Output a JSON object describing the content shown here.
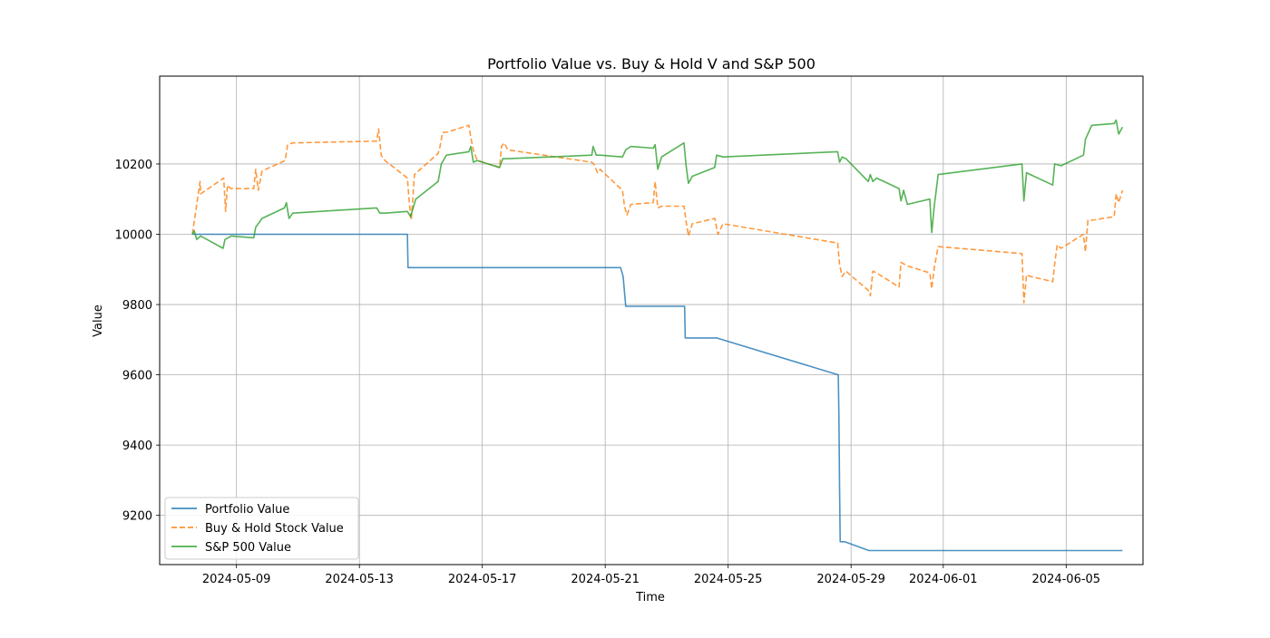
{
  "chart_data": {
    "type": "line",
    "title": "Portfolio Value vs. Buy & Hold V and S&P 500",
    "xlabel": "Time",
    "ylabel": "Value",
    "xlim": [
      "2024-05-06T12:00",
      "2024-06-07T12:00"
    ],
    "ylim": [
      9060,
      10450
    ],
    "x_ticks": [
      "2024-05-09",
      "2024-05-13",
      "2024-05-17",
      "2024-05-21",
      "2024-05-25",
      "2024-05-29",
      "2024-06-01",
      "2024-06-05"
    ],
    "y_ticks": [
      9200,
      9400,
      9600,
      9800,
      10000,
      10200
    ],
    "grid": true,
    "legend_position": "lower-left",
    "series": [
      {
        "name": "Portfolio Value",
        "color": "#1f77b4",
        "style": "solid",
        "points": [
          [
            "2024-05-07T13:30",
            10000
          ],
          [
            "2024-05-14T13:30",
            10000
          ],
          [
            "2024-05-14T14:00",
            9905
          ],
          [
            "2024-05-21T12:00",
            9905
          ],
          [
            "2024-05-21T14:00",
            9880
          ],
          [
            "2024-05-21T16:00",
            9795
          ],
          [
            "2024-05-23T14:00",
            9795
          ],
          [
            "2024-05-23T14:30",
            9705
          ],
          [
            "2024-05-24T15:00",
            9705
          ],
          [
            "2024-05-28T14:00",
            9600
          ],
          [
            "2024-05-28T14:30",
            9480
          ],
          [
            "2024-05-28T15:00",
            9280
          ],
          [
            "2024-05-28T15:30",
            9125
          ],
          [
            "2024-05-28T19:00",
            9125
          ],
          [
            "2024-05-29T14:00",
            9100
          ],
          [
            "2024-06-06T20:00",
            9100
          ]
        ]
      },
      {
        "name": "Buy & Hold Stock Value",
        "color": "#ff7f0e",
        "style": "dashed",
        "points": [
          [
            "2024-05-07T13:30",
            10000
          ],
          [
            "2024-05-07T16:00",
            10060
          ],
          [
            "2024-05-07T18:00",
            10110
          ],
          [
            "2024-05-07T19:30",
            10150
          ],
          [
            "2024-05-07T20:00",
            10115
          ],
          [
            "2024-05-08T14:00",
            10160
          ],
          [
            "2024-05-08T15:30",
            10065
          ],
          [
            "2024-05-08T17:00",
            10140
          ],
          [
            "2024-05-08T19:30",
            10130
          ],
          [
            "2024-05-09T13:30",
            10130
          ],
          [
            "2024-05-09T15:00",
            10185
          ],
          [
            "2024-05-09T17:00",
            10125
          ],
          [
            "2024-05-09T20:00",
            10180
          ],
          [
            "2024-05-10T14:00",
            10210
          ],
          [
            "2024-05-10T16:00",
            10255
          ],
          [
            "2024-05-10T20:00",
            10260
          ],
          [
            "2024-05-13T13:30",
            10265
          ],
          [
            "2024-05-13T15:00",
            10300
          ],
          [
            "2024-05-13T17:00",
            10225
          ],
          [
            "2024-05-13T20:00",
            10210
          ],
          [
            "2024-05-14T13:30",
            10160
          ],
          [
            "2024-05-14T15:00",
            10090
          ],
          [
            "2024-05-14T16:30",
            10040
          ],
          [
            "2024-05-14T19:00",
            10170
          ],
          [
            "2024-05-15T13:30",
            10230
          ],
          [
            "2024-05-15T15:00",
            10250
          ],
          [
            "2024-05-15T17:00",
            10290
          ],
          [
            "2024-05-15T20:00",
            10290
          ],
          [
            "2024-05-16T13:30",
            10310
          ],
          [
            "2024-05-16T15:00",
            10275
          ],
          [
            "2024-05-16T17:00",
            10240
          ],
          [
            "2024-05-16T20:00",
            10210
          ],
          [
            "2024-05-17T13:30",
            10190
          ],
          [
            "2024-05-17T15:00",
            10250
          ],
          [
            "2024-05-17T17:00",
            10260
          ],
          [
            "2024-05-17T20:00",
            10240
          ],
          [
            "2024-05-20T13:30",
            10205
          ],
          [
            "2024-05-20T15:00",
            10200
          ],
          [
            "2024-05-20T18:00",
            10175
          ],
          [
            "2024-05-20T20:00",
            10185
          ],
          [
            "2024-05-21T13:30",
            10125
          ],
          [
            "2024-05-21T15:00",
            10080
          ],
          [
            "2024-05-21T17:00",
            10055
          ],
          [
            "2024-05-21T20:00",
            10085
          ],
          [
            "2024-05-22T13:30",
            10090
          ],
          [
            "2024-05-22T15:00",
            10150
          ],
          [
            "2024-05-22T17:00",
            10075
          ],
          [
            "2024-05-22T20:00",
            10080
          ],
          [
            "2024-05-23T13:30",
            10080
          ],
          [
            "2024-05-23T15:00",
            10040
          ],
          [
            "2024-05-23T17:00",
            9995
          ],
          [
            "2024-05-23T20:00",
            10030
          ],
          [
            "2024-05-24T13:30",
            10045
          ],
          [
            "2024-05-24T16:00",
            10000
          ],
          [
            "2024-05-24T20:00",
            10030
          ],
          [
            "2024-05-28T13:30",
            9975
          ],
          [
            "2024-05-28T15:00",
            9915
          ],
          [
            "2024-05-28T17:00",
            9880
          ],
          [
            "2024-05-28T20:00",
            9895
          ],
          [
            "2024-05-29T13:30",
            9840
          ],
          [
            "2024-05-29T15:00",
            9825
          ],
          [
            "2024-05-29T17:00",
            9895
          ],
          [
            "2024-05-29T20:00",
            9890
          ],
          [
            "2024-05-30T13:30",
            9850
          ],
          [
            "2024-05-30T15:00",
            9920
          ],
          [
            "2024-05-30T20:00",
            9910
          ],
          [
            "2024-05-31T13:30",
            9890
          ],
          [
            "2024-05-31T15:00",
            9845
          ],
          [
            "2024-05-31T17:00",
            9905
          ],
          [
            "2024-05-31T20:00",
            9965
          ],
          [
            "2024-06-03T13:30",
            9945
          ],
          [
            "2024-06-03T15:00",
            9805
          ],
          [
            "2024-06-03T17:00",
            9885
          ],
          [
            "2024-06-03T20:00",
            9880
          ],
          [
            "2024-06-04T13:30",
            9865
          ],
          [
            "2024-06-04T15:00",
            9915
          ],
          [
            "2024-06-04T17:00",
            9970
          ],
          [
            "2024-06-04T20:00",
            9960
          ],
          [
            "2024-06-05T13:30",
            10000
          ],
          [
            "2024-06-05T15:00",
            9950
          ],
          [
            "2024-06-05T17:00",
            10040
          ],
          [
            "2024-06-05T20:00",
            10040
          ],
          [
            "2024-06-06T13:30",
            10050
          ],
          [
            "2024-06-06T15:00",
            10115
          ],
          [
            "2024-06-06T17:00",
            10090
          ],
          [
            "2024-06-06T20:00",
            10125
          ]
        ]
      },
      {
        "name": "S&P 500 Value",
        "color": "#2ca02c",
        "style": "solid",
        "points": [
          [
            "2024-05-07T13:30",
            10000
          ],
          [
            "2024-05-07T15:00",
            10010
          ],
          [
            "2024-05-07T17:00",
            9985
          ],
          [
            "2024-05-07T20:00",
            9995
          ],
          [
            "2024-05-08T13:30",
            9960
          ],
          [
            "2024-05-08T15:00",
            9985
          ],
          [
            "2024-05-08T20:00",
            9995
          ],
          [
            "2024-05-09T13:30",
            9990
          ],
          [
            "2024-05-09T15:00",
            10020
          ],
          [
            "2024-05-09T20:00",
            10045
          ],
          [
            "2024-05-10T13:30",
            10075
          ],
          [
            "2024-05-10T15:00",
            10090
          ],
          [
            "2024-05-10T17:00",
            10045
          ],
          [
            "2024-05-10T20:00",
            10060
          ],
          [
            "2024-05-13T13:30",
            10075
          ],
          [
            "2024-05-13T16:00",
            10060
          ],
          [
            "2024-05-13T20:00",
            10060
          ],
          [
            "2024-05-14T13:30",
            10065
          ],
          [
            "2024-05-14T16:00",
            10050
          ],
          [
            "2024-05-14T20:00",
            10100
          ],
          [
            "2024-05-15T13:30",
            10150
          ],
          [
            "2024-05-15T16:00",
            10200
          ],
          [
            "2024-05-15T20:00",
            10225
          ],
          [
            "2024-05-16T13:30",
            10235
          ],
          [
            "2024-05-16T15:00",
            10250
          ],
          [
            "2024-05-16T17:00",
            10205
          ],
          [
            "2024-05-16T20:00",
            10210
          ],
          [
            "2024-05-17T13:30",
            10190
          ],
          [
            "2024-05-17T16:00",
            10215
          ],
          [
            "2024-05-17T20:00",
            10215
          ],
          [
            "2024-05-20T13:30",
            10225
          ],
          [
            "2024-05-20T14:30",
            10250
          ],
          [
            "2024-05-20T17:00",
            10225
          ],
          [
            "2024-05-20T20:00",
            10225
          ],
          [
            "2024-05-21T13:30",
            10220
          ],
          [
            "2024-05-21T16:00",
            10240
          ],
          [
            "2024-05-21T20:00",
            10250
          ],
          [
            "2024-05-22T13:30",
            10245
          ],
          [
            "2024-05-22T15:00",
            10255
          ],
          [
            "2024-05-22T17:00",
            10185
          ],
          [
            "2024-05-22T20:00",
            10220
          ],
          [
            "2024-05-23T13:30",
            10260
          ],
          [
            "2024-05-23T15:00",
            10200
          ],
          [
            "2024-05-23T17:00",
            10145
          ],
          [
            "2024-05-23T20:00",
            10165
          ],
          [
            "2024-05-24T13:30",
            10190
          ],
          [
            "2024-05-24T15:00",
            10225
          ],
          [
            "2024-05-24T20:00",
            10220
          ],
          [
            "2024-05-28T13:30",
            10235
          ],
          [
            "2024-05-28T15:00",
            10205
          ],
          [
            "2024-05-28T17:00",
            10220
          ],
          [
            "2024-05-28T20:00",
            10215
          ],
          [
            "2024-05-29T13:30",
            10150
          ],
          [
            "2024-05-29T15:00",
            10170
          ],
          [
            "2024-05-29T17:00",
            10150
          ],
          [
            "2024-05-29T20:00",
            10160
          ],
          [
            "2024-05-30T13:30",
            10130
          ],
          [
            "2024-05-30T15:00",
            10095
          ],
          [
            "2024-05-30T17:00",
            10125
          ],
          [
            "2024-05-30T20:00",
            10085
          ],
          [
            "2024-05-31T13:30",
            10100
          ],
          [
            "2024-05-31T15:00",
            10005
          ],
          [
            "2024-05-31T17:00",
            10080
          ],
          [
            "2024-05-31T20:00",
            10170
          ],
          [
            "2024-06-03T13:30",
            10200
          ],
          [
            "2024-06-03T15:00",
            10095
          ],
          [
            "2024-06-03T17:00",
            10175
          ],
          [
            "2024-06-03T20:00",
            10170
          ],
          [
            "2024-06-04T13:30",
            10140
          ],
          [
            "2024-06-04T15:00",
            10200
          ],
          [
            "2024-06-04T20:00",
            10195
          ],
          [
            "2024-06-05T13:30",
            10225
          ],
          [
            "2024-06-05T15:00",
            10270
          ],
          [
            "2024-06-05T20:00",
            10310
          ],
          [
            "2024-06-06T13:30",
            10315
          ],
          [
            "2024-06-06T15:00",
            10325
          ],
          [
            "2024-06-06T17:00",
            10285
          ],
          [
            "2024-06-06T20:00",
            10305
          ]
        ]
      }
    ]
  }
}
